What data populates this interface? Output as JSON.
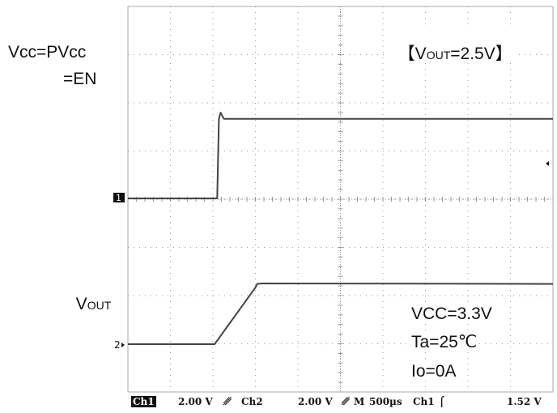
{
  "chart_data": {
    "type": "line",
    "title": "",
    "grid": true,
    "x_unit": "µs",
    "y_unit": "V",
    "xlim": [
      0,
      5000
    ],
    "series": [
      {
        "name": "Vcc=PVcc =EN",
        "color": "#444444",
        "x": [
          0,
          1020,
          1050,
          1070,
          1090,
          1130,
          5000
        ],
        "y": [
          0,
          0,
          0,
          3.3,
          3.56,
          3.3,
          3.3
        ]
      },
      {
        "name": "Vout",
        "color": "#444444",
        "x": [
          0,
          1020,
          1500,
          1520,
          1580,
          5000
        ],
        "y": [
          0,
          0,
          2.35,
          2.5,
          2.52,
          2.5
        ]
      }
    ]
  },
  "labels": {
    "vcc_line1": "Vcc=PVcc",
    "vcc_line2": "=EN",
    "vout_main": "V",
    "vout_sub": "OUT",
    "title_main": "【V",
    "title_sub": "OUT",
    "title_tail": "=2.5V】",
    "cond_vcc": "VCC=3.3V",
    "cond_ta": "Ta=25℃",
    "cond_io": "Io=0A"
  },
  "markers": {
    "ch1": "1",
    "ch2": "2"
  },
  "status_bar": {
    "ch1_tag": "Ch1",
    "ch1_scale": "2.00 V",
    "ch2_tag": "Ch2",
    "ch2_scale": "2.00 V",
    "m_tag": "M",
    "time_scale": "500µs",
    "trig_src": "Ch1",
    "trig_level": "1.52 V"
  },
  "colors": {
    "trace": "#444444",
    "frame": "#aaaaaa",
    "grid_dot": "#9a9a9a"
  }
}
